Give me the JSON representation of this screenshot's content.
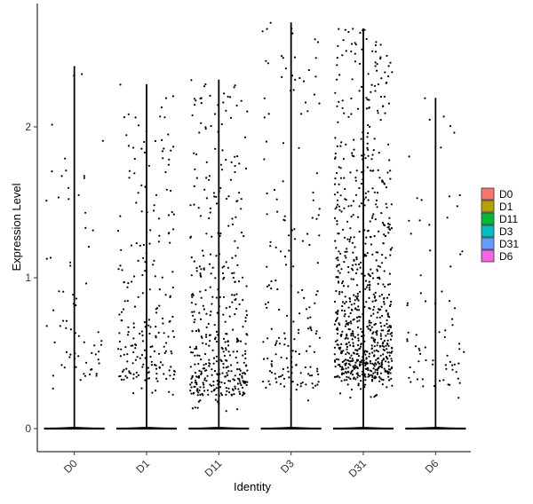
{
  "chart_data": {
    "type": "violin",
    "xlabel": "Identity",
    "ylabel": "Expression Level",
    "categories": [
      "D0",
      "D1",
      "D11",
      "D3",
      "D31",
      "D6"
    ],
    "ylim": [
      -0.15,
      2.82
    ],
    "yticks": [
      0,
      1,
      2
    ],
    "grid": false,
    "legend_position": "right",
    "series": [
      {
        "category": "D0",
        "color": "#F8766D",
        "max": 2.4,
        "nonzero_points": 70,
        "nonzero_range": [
          0.2,
          2.35
        ]
      },
      {
        "category": "D1",
        "color": "#B79F00",
        "max": 2.28,
        "nonzero_points": 220,
        "nonzero_range": [
          0.2,
          2.28
        ]
      },
      {
        "category": "D11",
        "color": "#00BA38",
        "max": 2.31,
        "nonzero_points": 420,
        "nonzero_range": [
          0.1,
          2.31
        ]
      },
      {
        "category": "D3",
        "color": "#00BFC4",
        "max": 2.69,
        "nonzero_points": 180,
        "nonzero_range": [
          0.15,
          2.69
        ]
      },
      {
        "category": "D31",
        "color": "#619CFF",
        "max": 2.65,
        "nonzero_points": 800,
        "nonzero_range": [
          0.2,
          2.65
        ]
      },
      {
        "category": "D6",
        "color": "#F564E3",
        "max": 2.19,
        "nonzero_points": 75,
        "nonzero_range": [
          0.15,
          2.19
        ]
      }
    ],
    "legend": [
      "D0",
      "D1",
      "D11",
      "D3",
      "D31",
      "D6"
    ]
  }
}
